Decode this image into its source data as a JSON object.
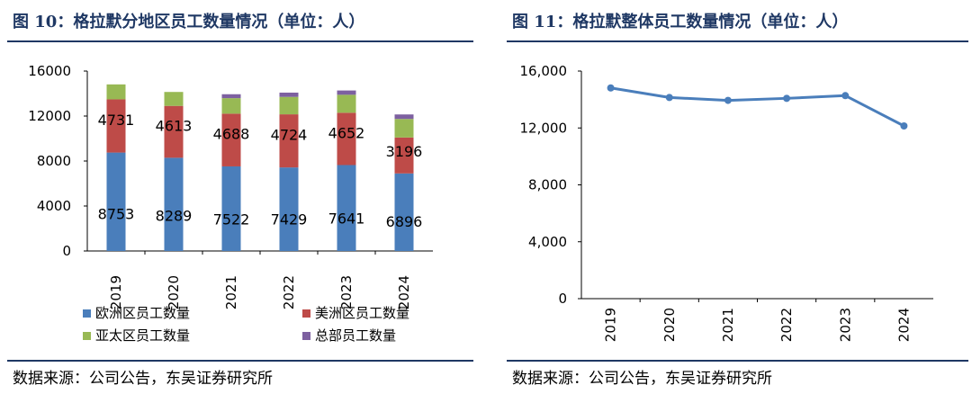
{
  "left": {
    "title": "图 10：格拉默分地区员工数量情况（单位：人）",
    "source": "数据来源：公司公告，东吴证券研究所"
  },
  "right": {
    "title": "图 11：格拉默整体员工数量情况（单位：人）",
    "source": "数据来源：公司公告，东吴证券研究所"
  },
  "colors": {
    "title": "#1f3864",
    "europe": "#4a7ebb",
    "americas": "#be4b48",
    "apac": "#98b954",
    "hq": "#7d60a0",
    "line": "#4a7ebb"
  },
  "chart_data": [
    {
      "type": "bar",
      "stacked": true,
      "categories": [
        "2019",
        "2020",
        "2021",
        "2022",
        "2023",
        "2024"
      ],
      "ylim": [
        0,
        16000
      ],
      "yticks": [
        "0",
        "4000",
        "8000",
        "12000",
        "16000"
      ],
      "series": [
        {
          "name": "欧洲区员工数量",
          "values": [
            8753,
            8289,
            7522,
            7429,
            7641,
            6896
          ]
        },
        {
          "name": "美洲区员工数量",
          "values": [
            4731,
            4613,
            4688,
            4724,
            4652,
            3196
          ]
        },
        {
          "name": "亚太区员工数量",
          "values": [
            1330,
            1240,
            1380,
            1550,
            1600,
            1650
          ]
        },
        {
          "name": "总部员工数量",
          "values": [
            0,
            0,
            350,
            380,
            380,
            400
          ]
        }
      ],
      "legend_position": "bottom",
      "grid": false
    },
    {
      "type": "line",
      "x": [
        "2019",
        "2020",
        "2021",
        "2022",
        "2023",
        "2024"
      ],
      "y": [
        14814,
        14142,
        13940,
        14083,
        14273,
        12142
      ],
      "ylim": [
        0,
        16000
      ],
      "yticks": [
        "0",
        "4,000",
        "8,000",
        "12,000",
        "16,000"
      ],
      "grid": false
    }
  ]
}
